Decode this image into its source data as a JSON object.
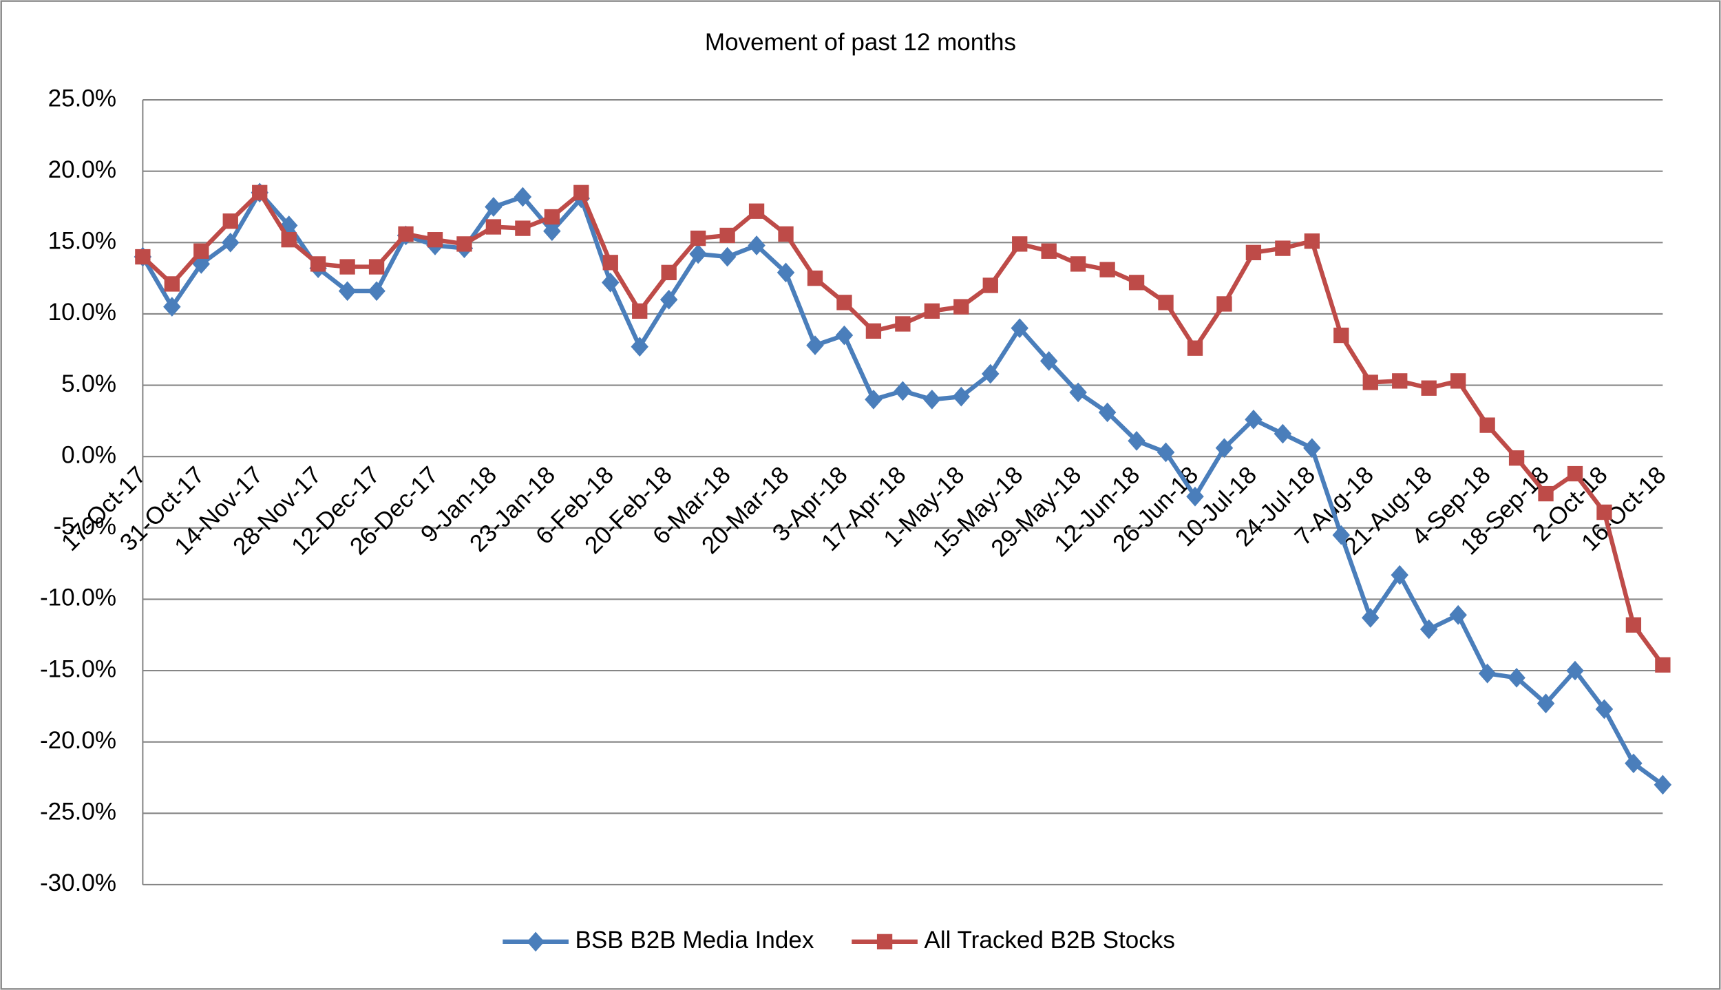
{
  "chart_data": {
    "type": "line",
    "title": "Movement of past 12 months",
    "categories": [
      "17-Oct-17",
      null,
      "31-Oct-17",
      null,
      "14-Nov-17",
      null,
      "28-Nov-17",
      null,
      "12-Dec-17",
      null,
      "26-Dec-17",
      null,
      "9-Jan-18",
      null,
      "23-Jan-18",
      null,
      "6-Feb-18",
      null,
      "20-Feb-18",
      null,
      "6-Mar-18",
      null,
      "20-Mar-18",
      null,
      "3-Apr-18",
      null,
      "17-Apr-18",
      null,
      "1-May-18",
      null,
      "15-May-18",
      null,
      "29-May-18",
      null,
      "12-Jun-18",
      null,
      "26-Jun-18",
      null,
      "10-Jul-18",
      null,
      "24-Jul-18",
      null,
      "7-Aug-18",
      null,
      "21-Aug-18",
      null,
      "4-Sep-18",
      null,
      "18-Sep-18",
      null,
      "2-Oct-18",
      null,
      "16-Oct-18"
    ],
    "series": [
      {
        "name": "BSB B2B Media Index",
        "color": "#4a7ebb",
        "marker": "diamond",
        "values": [
          14.0,
          10.5,
          13.5,
          15.0,
          18.5,
          16.2,
          13.2,
          11.6,
          11.6,
          15.5,
          14.8,
          14.6,
          17.5,
          18.2,
          15.8,
          18.1,
          12.2,
          7.7,
          11.0,
          14.2,
          14.0,
          14.8,
          12.9,
          7.8,
          8.5,
          4.0,
          4.6,
          4.0,
          4.2,
          5.8,
          9.0,
          6.7,
          4.5,
          3.1,
          1.1,
          0.3,
          -2.8,
          0.6,
          2.6,
          1.6,
          0.6,
          -5.5,
          -11.3,
          -8.3,
          -12.1,
          -11.1,
          -15.2,
          -15.5,
          -17.3,
          -15.0,
          -17.7,
          -21.5,
          -23.0
        ]
      },
      {
        "name": "All Tracked B2B Stocks",
        "color": "#be4b48",
        "marker": "square",
        "values": [
          14.0,
          12.1,
          14.4,
          16.5,
          18.5,
          15.2,
          13.5,
          13.3,
          13.3,
          15.6,
          15.2,
          14.9,
          16.1,
          16.0,
          16.8,
          18.5,
          13.6,
          10.2,
          12.9,
          15.3,
          15.5,
          17.2,
          15.6,
          12.5,
          10.8,
          8.8,
          9.3,
          10.2,
          10.5,
          12.0,
          14.9,
          14.4,
          13.5,
          13.1,
          12.2,
          10.8,
          7.6,
          10.7,
          14.3,
          14.6,
          15.1,
          8.5,
          5.2,
          5.3,
          4.8,
          5.3,
          2.2,
          -0.1,
          -2.6,
          -1.2,
          -3.9,
          -11.8,
          -14.6
        ]
      }
    ],
    "ylim": [
      -30,
      25
    ],
    "yticks": [
      {
        "value": -30,
        "label": "-30.0%"
      },
      {
        "value": -25,
        "label": "-25.0%"
      },
      {
        "value": -20,
        "label": "-20.0%"
      },
      {
        "value": -15,
        "label": "-15.0%"
      },
      {
        "value": -10,
        "label": "-10.0%"
      },
      {
        "value": -5,
        "label": "-5.0%"
      },
      {
        "value": 0,
        "label": "0.0%"
      },
      {
        "value": 5,
        "label": "5.0%"
      },
      {
        "value": 10,
        "label": "10.0%"
      },
      {
        "value": 15,
        "label": "15.0%"
      },
      {
        "value": 20,
        "label": "20.0%"
      },
      {
        "value": 25,
        "label": "25.0%"
      }
    ],
    "grid": true,
    "legend": "bottom"
  }
}
